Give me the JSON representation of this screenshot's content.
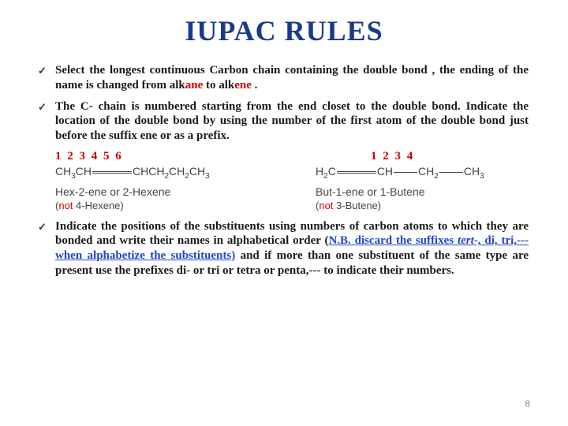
{
  "title": "IUPAC RULES",
  "bullets": {
    "b1_pre": "Select  the longest continuous  Carbon chain containing the double bond , the ending  of the name is changed from  alk",
    "b1_ane": "ane",
    "b1_mid": " to alk",
    "b1_ene": "ene",
    "b1_end": " .",
    "b2": "The C- chain  is numbered starting from the end closet to the double bond. Indicate the location of the double bond by using the number of the first atom of the double bond just before the suffix ene or as a prefix.",
    "b3_pre": "Indicate the positions of the substituents using numbers of carbon atoms to which they are  bonded and write their names in alphabetical order (",
    "b3_nb": "N.B. discard the suffixes ",
    "b3_tert": "tert",
    "b3_nb2": "-, di, tri,--- when alphabetize the substituents)",
    "b3_end": " and if more than one substituent of the same type are present use the prefixes di- or tri or tetra or penta,--- to indicate their numbers."
  },
  "example1": {
    "numbers": "1   2           3  4     5     6",
    "structure_pre": "CH",
    "structure_mid": "CH",
    "structure_ch": "CHCH",
    "structure_ch2": "CH",
    "structure_ch3": "CH",
    "name": "Hex-2-ene or 2-Hexene",
    "not_pre": "(",
    "not": "not",
    "not_post": " 4-Hexene)"
  },
  "example2": {
    "numbers": "1         2     3     4",
    "structure_h2c": "H",
    "structure_c": "C",
    "structure_ch": "CH",
    "structure_ch2": "CH",
    "structure_ch3": "CH",
    "name": "But-1-ene or 1-Butene",
    "not_pre": "(",
    "not": "not",
    "not_post": " 3-Butene)"
  },
  "page_number": "8",
  "colors": {
    "title": "#1a3a8a",
    "text": "#1a1a1a",
    "highlight_red": "#cc0000",
    "highlight_blue": "#2244cc",
    "structure": "#444444",
    "page_num": "#888888",
    "background": "#ffffff"
  }
}
